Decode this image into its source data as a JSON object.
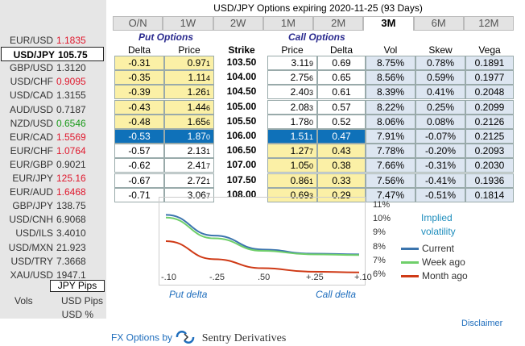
{
  "title": "USD/JPY Options expiring 2020-11-25 (93 Days)",
  "tabs": [
    "O/N",
    "1W",
    "2W",
    "1M",
    "2M",
    "3M",
    "6M",
    "12M"
  ],
  "active_tab": "3M",
  "sidebar": {
    "pairs": [
      {
        "name": "EUR/USD",
        "value": "1.1835",
        "color": "red"
      },
      {
        "name": "USD/JPY",
        "value": "105.75",
        "color": "selected"
      },
      {
        "name": "GBP/USD",
        "value": "1.3120",
        "color": "normal"
      },
      {
        "name": "USD/CHF",
        "value": "0.9095",
        "color": "red"
      },
      {
        "name": "USD/CAD",
        "value": "1.3155",
        "color": "normal"
      },
      {
        "name": "AUD/USD",
        "value": "0.7187",
        "color": "normal"
      },
      {
        "name": "NZD/USD",
        "value": "0.6546",
        "color": "green"
      },
      {
        "name": "EUR/CAD",
        "value": "1.5569",
        "color": "red"
      },
      {
        "name": "EUR/CHF",
        "value": "1.0764",
        "color": "red"
      },
      {
        "name": "EUR/GBP",
        "value": "0.9021",
        "color": "normal"
      },
      {
        "name": "EUR/JPY",
        "value": "125.16",
        "color": "red"
      },
      {
        "name": "EUR/AUD",
        "value": "1.6468",
        "color": "red"
      },
      {
        "name": "GBP/JPY",
        "value": "138.75",
        "color": "normal"
      },
      {
        "name": "USD/CNH",
        "value": "6.9068",
        "color": "normal"
      },
      {
        "name": "USD/ILS",
        "value": "3.4010",
        "color": "normal"
      },
      {
        "name": "USD/MXN",
        "value": "21.923",
        "color": "normal"
      },
      {
        "name": "USD/TRY",
        "value": "7.3668",
        "color": "normal"
      },
      {
        "name": "XAU/USD",
        "value": "1947.1",
        "color": "normal"
      }
    ],
    "pips_label": "JPY Pips",
    "vols_label": "Vols",
    "usd_pips_label": "USD Pips",
    "usd_pct_label": "USD %"
  },
  "table": {
    "put_section": "Put Options",
    "call_section": "Call Options",
    "headers": {
      "put_delta": "Delta",
      "put_price": "Price",
      "strike": "Strike",
      "call_price": "Price",
      "call_delta": "Delta",
      "vol": "Vol",
      "skew": "Skew",
      "vega": "Vega"
    },
    "rows": [
      {
        "put_delta": "-0.31",
        "put_price": "0.97",
        "put_price_sub": "1",
        "strike": "103.50",
        "call_price": "3.11",
        "call_price_sub": "9",
        "call_delta": "0.69",
        "vol": "8.75%",
        "skew": "0.78%",
        "vega": "0.1891"
      },
      {
        "put_delta": "-0.35",
        "put_price": "1.11",
        "put_price_sub": "4",
        "strike": "104.00",
        "call_price": "2.75",
        "call_price_sub": "6",
        "call_delta": "0.65",
        "vol": "8.56%",
        "skew": "0.59%",
        "vega": "0.1977"
      },
      {
        "put_delta": "-0.39",
        "put_price": "1.26",
        "put_price_sub": "1",
        "strike": "104.50",
        "call_price": "2.40",
        "call_price_sub": "3",
        "call_delta": "0.61",
        "vol": "8.39%",
        "skew": "0.41%",
        "vega": "0.2048"
      },
      {
        "put_delta": "-0.43",
        "put_price": "1.44",
        "put_price_sub": "6",
        "strike": "105.00",
        "call_price": "2.08",
        "call_price_sub": "3",
        "call_delta": "0.57",
        "vol": "8.22%",
        "skew": "0.25%",
        "vega": "0.2099"
      },
      {
        "put_delta": "-0.48",
        "put_price": "1.65",
        "put_price_sub": "6",
        "strike": "105.50",
        "call_price": "1.78",
        "call_price_sub": "0",
        "call_delta": "0.52",
        "vol": "8.06%",
        "skew": "0.08%",
        "vega": "0.2126"
      },
      {
        "put_delta": "-0.53",
        "put_price": "1.87",
        "put_price_sub": "0",
        "strike": "106.00",
        "call_price": "1.51",
        "call_price_sub": "1",
        "call_delta": "0.47",
        "vol": "7.91%",
        "skew": "-0.07%",
        "vega": "0.2125"
      },
      {
        "put_delta": "-0.57",
        "put_price": "2.13",
        "put_price_sub": "1",
        "strike": "106.50",
        "call_price": "1.27",
        "call_price_sub": "7",
        "call_delta": "0.43",
        "vol": "7.78%",
        "skew": "-0.20%",
        "vega": "0.2093"
      },
      {
        "put_delta": "-0.62",
        "put_price": "2.41",
        "put_price_sub": "7",
        "strike": "107.00",
        "call_price": "1.05",
        "call_price_sub": "0",
        "call_delta": "0.38",
        "vol": "7.66%",
        "skew": "-0.31%",
        "vega": "0.2030"
      },
      {
        "put_delta": "-0.67",
        "put_price": "2.72",
        "put_price_sub": "1",
        "strike": "107.50",
        "call_price": "0.86",
        "call_price_sub": "1",
        "call_delta": "0.33",
        "vol": "7.56%",
        "skew": "-0.41%",
        "vega": "0.1936"
      },
      {
        "put_delta": "-0.71",
        "put_price": "3.06",
        "put_price_sub": "7",
        "strike": "108.00",
        "call_price": "0.69",
        "call_price_sub": "3",
        "call_delta": "0.29",
        "vol": "7.47%",
        "skew": "-0.51%",
        "vega": "0.1814"
      }
    ],
    "atm_row": 5
  },
  "chart_data": {
    "type": "line",
    "title": "Implied volatility",
    "x_ticks": [
      "-.10",
      "-.25",
      ".50",
      "+.25",
      "+.10"
    ],
    "x_positions": [
      0,
      1,
      2,
      3,
      4
    ],
    "xlabel_left": "Put delta",
    "xlabel_right": "Call delta",
    "y_ticks": [
      "11%",
      "10%",
      "9%",
      "8%",
      "7%",
      "6%"
    ],
    "ylim": [
      6,
      11
    ],
    "series": [
      {
        "name": "Current",
        "color": "#3b74ad",
        "values": [
          10.4,
          8.9,
          7.9,
          7.6,
          7.55
        ]
      },
      {
        "name": "Week ago",
        "color": "#6fcf6a",
        "values": [
          10.2,
          8.7,
          7.8,
          7.55,
          7.5
        ]
      },
      {
        "name": "Month ago",
        "color": "#cf3a16",
        "values": [
          8.5,
          7.2,
          6.55,
          6.3,
          6.25
        ]
      }
    ]
  },
  "disclaimer": "Disclaimer",
  "footer": {
    "prefix": "FX Options by",
    "brand": "Sentry Derivatives"
  }
}
